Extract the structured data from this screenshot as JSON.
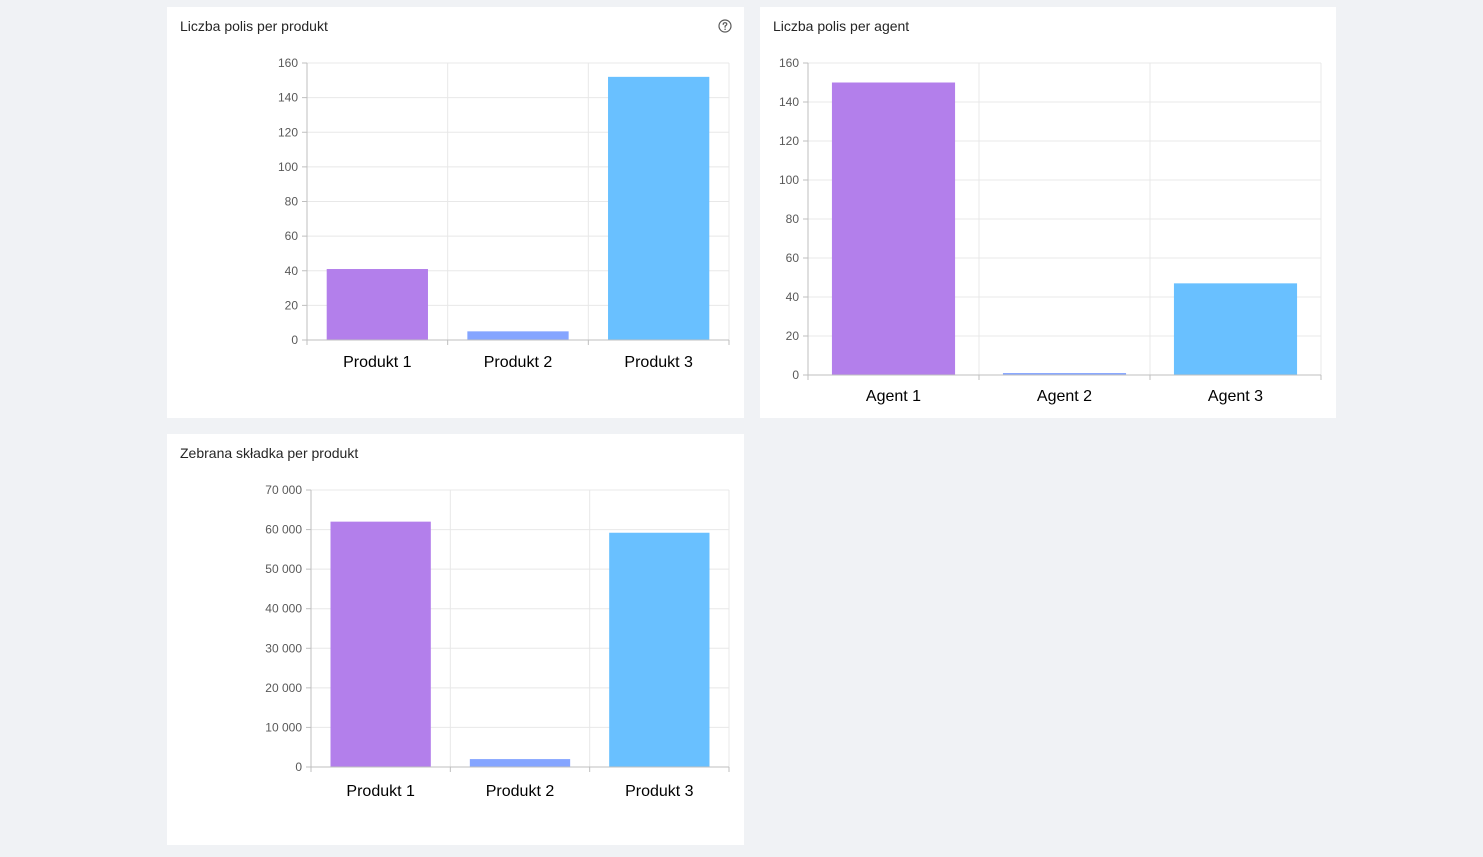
{
  "charts": [
    {
      "title": "Liczba polis per produkt",
      "has_help_icon": true,
      "help_icon": "question-circle-icon"
    },
    {
      "title": "Liczba polis per agent",
      "has_help_icon": false
    },
    {
      "title": "Zebrana składka per produkt",
      "has_help_icon": false
    }
  ],
  "colors": {
    "background": "#f0f2f5",
    "card": "#ffffff",
    "bar_1": "#b37feb",
    "bar_2": "#85a5ff",
    "bar_3": "#69c0ff",
    "grid": "#e8e8e8",
    "axis": "#bfbfbf"
  },
  "chart_data": [
    {
      "type": "bar",
      "title": "Liczba polis per produkt",
      "categories": [
        "Produkt 1",
        "Produkt 2",
        "Produkt 3"
      ],
      "values": [
        41,
        5,
        152
      ],
      "ylim": [
        0,
        160
      ],
      "yticks": [
        0,
        20,
        40,
        60,
        80,
        100,
        120,
        140,
        160
      ],
      "ytick_labels": [
        "0",
        "20",
        "40",
        "60",
        "80",
        "100",
        "120",
        "140",
        "160"
      ],
      "xlabel": "",
      "ylabel": "",
      "grid": true,
      "legend": "none"
    },
    {
      "type": "bar",
      "title": "Liczba polis per agent",
      "categories": [
        "Agent 1",
        "Agent 2",
        "Agent 3"
      ],
      "values": [
        150,
        1,
        47
      ],
      "ylim": [
        0,
        160
      ],
      "yticks": [
        0,
        20,
        40,
        60,
        80,
        100,
        120,
        140,
        160
      ],
      "ytick_labels": [
        "0",
        "20",
        "40",
        "60",
        "80",
        "100",
        "120",
        "140",
        "160"
      ],
      "xlabel": "",
      "ylabel": "",
      "grid": true,
      "legend": "none"
    },
    {
      "type": "bar",
      "title": "Zebrana składka per produkt",
      "categories": [
        "Produkt 1",
        "Produkt 2",
        "Produkt 3"
      ],
      "values": [
        62000,
        2000,
        59200
      ],
      "ylim": [
        0,
        70000
      ],
      "yticks": [
        0,
        10000,
        20000,
        30000,
        40000,
        50000,
        60000,
        70000
      ],
      "ytick_labels": [
        "0",
        "10 000",
        "20 000",
        "30 000",
        "40 000",
        "50 000",
        "60 000",
        "70 000"
      ],
      "xlabel": "",
      "ylabel": "",
      "grid": true,
      "legend": "none"
    }
  ]
}
